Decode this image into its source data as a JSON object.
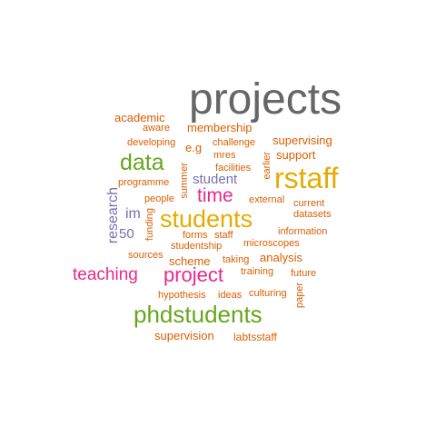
{
  "colors": {
    "gray": "#666666",
    "orange": "#d95f02",
    "green": "#66a61e",
    "magenta": "#e7298a",
    "gold": "#e6ab02",
    "purple": "#7570b3",
    "brown": "#a6761d"
  },
  "words": [
    {
      "text": "projects",
      "color": "gray"
    },
    {
      "text": "rstaff",
      "color": "gold"
    },
    {
      "text": "students",
      "color": "gold"
    },
    {
      "text": "phdstudents",
      "color": "green"
    },
    {
      "text": "data",
      "color": "green"
    },
    {
      "text": "time",
      "color": "magenta"
    },
    {
      "text": "project",
      "color": "magenta"
    },
    {
      "text": "teaching",
      "color": "magenta"
    },
    {
      "text": "research",
      "color": "purple"
    },
    {
      "text": "student",
      "color": "purple"
    },
    {
      "text": "im",
      "color": "purple"
    },
    {
      "text": "50",
      "color": "purple"
    },
    {
      "text": "academic",
      "color": "orange"
    },
    {
      "text": "membership",
      "color": "orange"
    },
    {
      "text": "supervising",
      "color": "orange"
    },
    {
      "text": "support",
      "color": "orange"
    },
    {
      "text": "scheme",
      "color": "orange"
    },
    {
      "text": "analysis",
      "color": "orange"
    },
    {
      "text": "supervision",
      "color": "orange"
    },
    {
      "text": "e.g",
      "color": "orange"
    },
    {
      "text": "aware",
      "color": "orange"
    },
    {
      "text": "developing",
      "color": "orange"
    },
    {
      "text": "challenge",
      "color": "orange"
    },
    {
      "text": "mres",
      "color": "orange"
    },
    {
      "text": "facilities",
      "color": "orange"
    },
    {
      "text": "earlier",
      "color": "orange"
    },
    {
      "text": "summer",
      "color": "orange"
    },
    {
      "text": "programme",
      "color": "orange"
    },
    {
      "text": "people",
      "color": "orange"
    },
    {
      "text": "external",
      "color": "orange"
    },
    {
      "text": "current",
      "color": "orange"
    },
    {
      "text": "datasets",
      "color": "orange"
    },
    {
      "text": "funding",
      "color": "orange"
    },
    {
      "text": "information",
      "color": "orange"
    },
    {
      "text": "forms",
      "color": "orange"
    },
    {
      "text": "staff",
      "color": "orange"
    },
    {
      "text": "studentship",
      "color": "orange"
    },
    {
      "text": "microscopes",
      "color": "orange"
    },
    {
      "text": "sources",
      "color": "orange"
    },
    {
      "text": "taking",
      "color": "orange"
    },
    {
      "text": "training",
      "color": "orange"
    },
    {
      "text": "future",
      "color": "orange"
    },
    {
      "text": "hypothesis",
      "color": "orange"
    },
    {
      "text": "ideas",
      "color": "orange"
    },
    {
      "text": "culturing",
      "color": "orange"
    },
    {
      "text": "paper",
      "color": "orange"
    },
    {
      "text": "labtsstaff",
      "color": "orange"
    }
  ]
}
